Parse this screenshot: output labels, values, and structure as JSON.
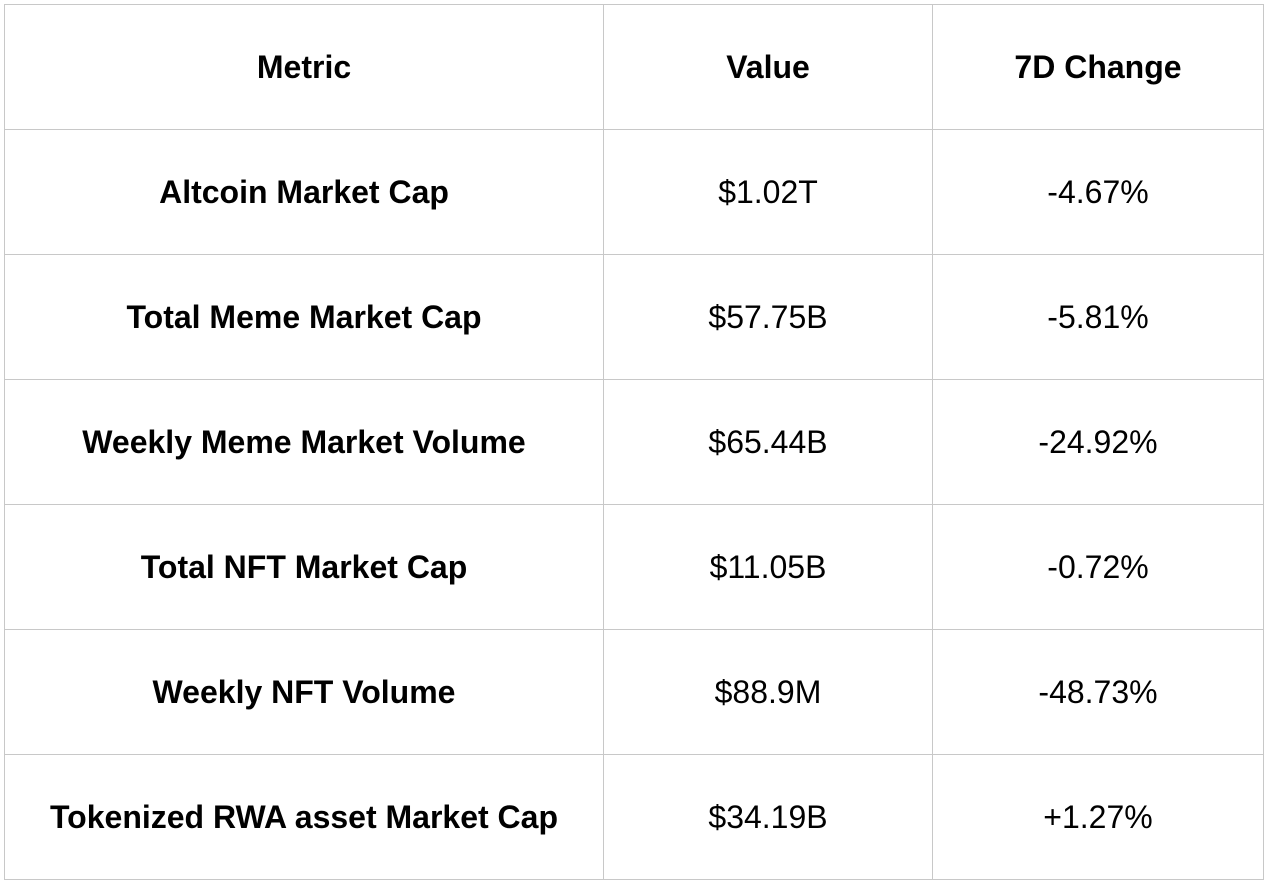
{
  "table": {
    "header": [
      "Metric",
      "Value",
      "7D Change"
    ],
    "rows": [
      [
        "Altcoin Market Cap",
        "$1.02T",
        "-4.67%"
      ],
      [
        "Total Meme Market Cap",
        "$57.75B",
        "-5.81%"
      ],
      [
        "Weekly Meme Market Volume",
        "$65.44B",
        "-24.92%"
      ],
      [
        "Total NFT Market Cap",
        "$11.05B",
        "-0.72%"
      ],
      [
        "Weekly NFT Volume",
        "$88.9M",
        "-48.73%"
      ],
      [
        "Tokenized RWA asset Market Cap",
        "$34.19B",
        "+1.27%"
      ]
    ]
  }
}
